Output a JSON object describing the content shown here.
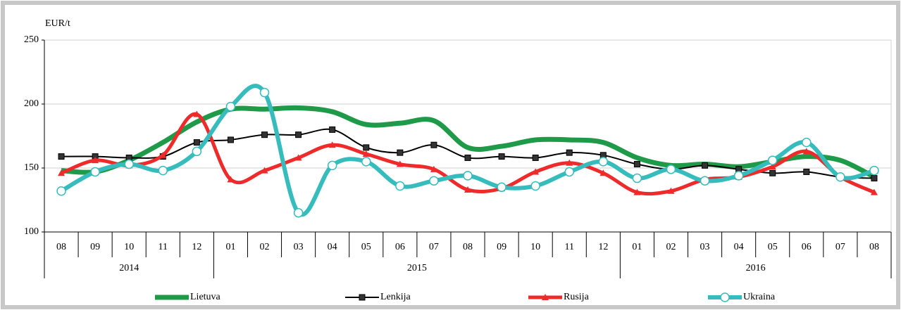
{
  "chart_data": {
    "type": "line",
    "y_label": "EUR/t",
    "categories": [
      "08",
      "09",
      "10",
      "11",
      "12",
      "01",
      "02",
      "03",
      "04",
      "05",
      "06",
      "07",
      "08",
      "09",
      "10",
      "11",
      "12",
      "01",
      "02",
      "03",
      "04",
      "05",
      "06",
      "07",
      "08"
    ],
    "years": [
      "2014",
      "2015",
      "2016"
    ],
    "year_spans": [
      5,
      12,
      8
    ],
    "ylim": [
      100,
      250
    ],
    "yticks": [
      100,
      150,
      200,
      250
    ],
    "grid": true,
    "legend": "bottom",
    "series": [
      {
        "name": "Lietuva",
        "color": "#1e9a48",
        "marker": "none",
        "values": [
          148,
          147,
          156,
          170,
          186,
          196,
          196,
          197,
          194,
          184,
          185,
          187,
          166,
          167,
          172,
          172,
          170,
          158,
          152,
          153,
          151,
          155,
          159,
          156,
          143
        ]
      },
      {
        "name": "Lenkija",
        "color": "#000000",
        "marker": "square",
        "values": [
          159,
          159,
          158,
          159,
          170,
          172,
          176,
          176,
          180,
          166,
          162,
          168,
          158,
          159,
          158,
          162,
          160,
          153,
          149,
          152,
          149,
          146,
          147,
          143,
          142
        ]
      },
      {
        "name": "Rusija",
        "color": "#ee2a2a",
        "marker": "triangle",
        "values": [
          146,
          156,
          152,
          160,
          192,
          141,
          148,
          158,
          168,
          161,
          153,
          149,
          133,
          134,
          147,
          154,
          146,
          131,
          132,
          141,
          143,
          151,
          163,
          143,
          131
        ]
      },
      {
        "name": "Ukraina",
        "color": "#36bcbc",
        "marker": "circle",
        "values": [
          132,
          147,
          153,
          148,
          163,
          198,
          209,
          115,
          152,
          155,
          136,
          140,
          144,
          135,
          136,
          147,
          155,
          142,
          149,
          140,
          144,
          156,
          170,
          143,
          148
        ]
      }
    ]
  }
}
